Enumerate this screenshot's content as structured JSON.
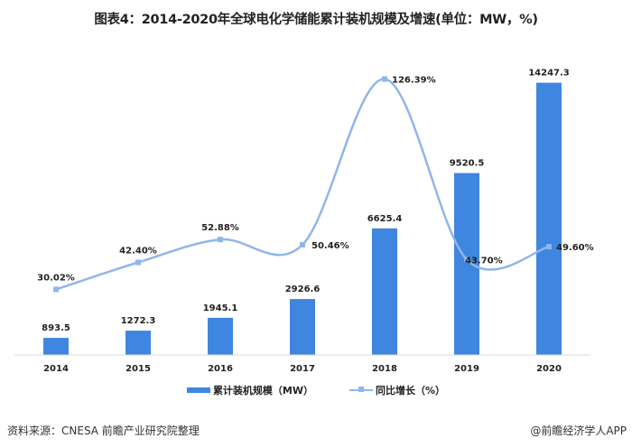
{
  "title": "图表4：2014-2020年全球电化学储能累计装机规模及增速(单位：MW，%)",
  "chart_data": {
    "type": "bar+line",
    "title": "图表4：2014-2020年全球电化学储能累计装机规模及增速(单位：MW，%)",
    "categories": [
      "2014",
      "2015",
      "2016",
      "2017",
      "2018",
      "2019",
      "2020"
    ],
    "series": [
      {
        "name": "累计装机规模（MW）",
        "type": "bar",
        "axis": "left",
        "color": "#3f86e0",
        "values": [
          893.5,
          1272.3,
          1945.1,
          2926.6,
          6625.4,
          9520.5,
          14247.3
        ],
        "labels": [
          "893.5",
          "1272.3",
          "1945.1",
          "2926.6",
          "6625.4",
          "9520.5",
          "14247.3"
        ]
      },
      {
        "name": "同比增长（%）",
        "type": "line",
        "smooth": true,
        "axis": "right",
        "color": "#8fb6ea",
        "values": [
          30.02,
          42.4,
          52.88,
          50.46,
          126.39,
          43.7,
          49.6
        ],
        "labels": [
          "30.02%",
          "42.40%",
          "52.88%",
          "50.46%",
          "126.39%",
          "43.70%",
          "49.60%"
        ]
      }
    ],
    "ylim_left": [
      0,
      15600
    ],
    "ylim_right": [
      0,
      136.5
    ],
    "axes_visible": false,
    "grid": false,
    "legend": "bottom"
  },
  "legend": {
    "bar": "累计装机规模（MW）",
    "line": "同比增长（%）"
  },
  "footer": {
    "source": "资料来源：CNESA 前瞻产业研究院整理",
    "brand": "@前瞻经济学人APP"
  }
}
